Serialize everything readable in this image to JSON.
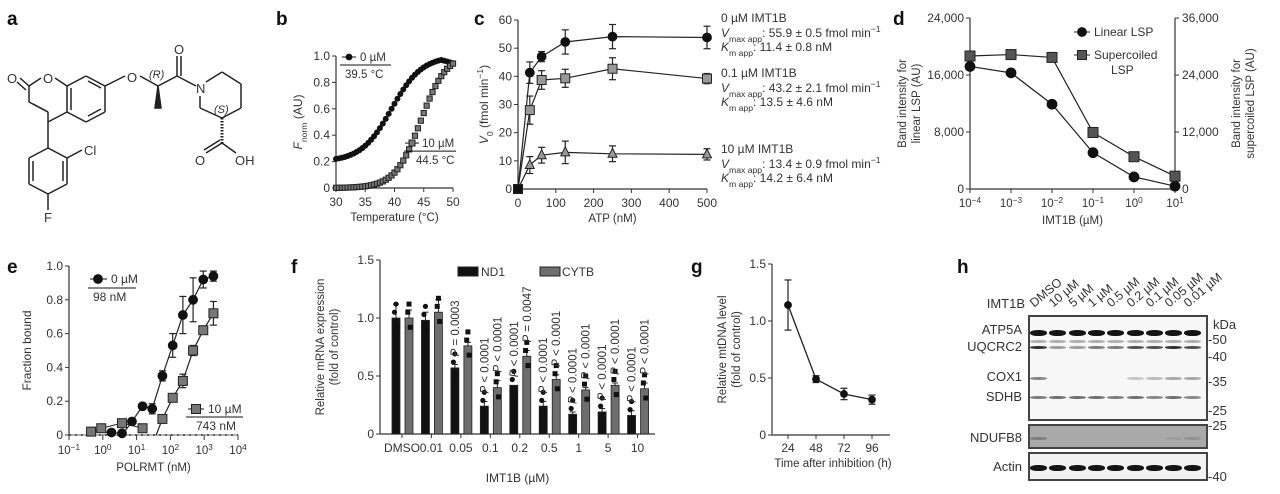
{
  "panel_labels": {
    "a": "a",
    "b": "b",
    "c": "c",
    "d": "d",
    "e": "e",
    "f": "f",
    "g": "g",
    "h": "h"
  },
  "panel_a": {
    "atoms": {
      "O_carbonyl_left": "O",
      "O_ring": "O",
      "O_ether": "O",
      "R_label": "(R)",
      "O_amide": "O",
      "N": "N",
      "S_label": "(S)",
      "O_acid": "O",
      "OH": "OH",
      "Cl": "Cl",
      "F": "F"
    }
  },
  "chart_data": [
    {
      "id": "b",
      "type": "scatter",
      "title": "",
      "xlabel": "Temperature (°C)",
      "ylabel_main": "F",
      "ylabel_sub": "norm",
      "ylabel_suffix": " (AU)",
      "xlim": [
        30,
        50
      ],
      "ylim": [
        0,
        1.0
      ],
      "xticks": [
        30,
        35,
        40,
        45,
        50
      ],
      "yticks": [
        0,
        0.2,
        0.4,
        0.6,
        0.8,
        1.0
      ],
      "ytick_labels": [
        "0",
        "0.2",
        "0.4",
        "0.6",
        "0.8",
        "1.0"
      ],
      "series": [
        {
          "name": "0 µM",
          "marker": "circle",
          "color": "#111111",
          "tm": 39.5,
          "tm_label": "39.5 °C",
          "baseline": 0.2,
          "top": 1.0,
          "slope": 2.6,
          "x_start": 30,
          "x_end": 50,
          "step": 0.5,
          "end_dip": 0.95
        },
        {
          "name": "10 µM",
          "marker": "square",
          "color": "#777777",
          "tm": 44.5,
          "tm_label": "44.5 °C",
          "baseline": 0.0,
          "top": 1.02,
          "slope": 2.2,
          "x_start": 30,
          "x_end": 50,
          "step": 0.5
        }
      ],
      "legend": "top-left"
    },
    {
      "id": "c",
      "type": "line",
      "xlabel": "ATP (nM)",
      "ylabel_main": "V",
      "ylabel_sub": "0",
      "ylabel_suffix": " (fmol min",
      "ylabel_sup": "−1",
      "ylabel_end": ")",
      "xlim": [
        0,
        500
      ],
      "ylim": [
        0,
        60
      ],
      "xticks": [
        0,
        100,
        200,
        300,
        400,
        500
      ],
      "yticks": [
        0,
        10,
        20,
        30,
        40,
        50,
        60
      ],
      "x": [
        0,
        31.25,
        62.5,
        125,
        250,
        500
      ],
      "series": [
        {
          "name": "0 µM IMT1B",
          "marker": "circle",
          "color": "#111111",
          "values": [
            0,
            41.3,
            47.0,
            52.2,
            54.1,
            53.8
          ],
          "err": [
            0,
            3.8,
            1.8,
            4.3,
            4.3,
            4.0
          ],
          "vmax": "55.9 ± 0.5 fmol min",
          "km": "11.4 ± 0.8 nM"
        },
        {
          "name": "0.1 µM IMT1B",
          "marker": "square",
          "color": "#999999",
          "values": [
            0,
            28.0,
            38.7,
            39.3,
            42.7,
            39.2
          ],
          "err": [
            0,
            5.0,
            3.3,
            3.2,
            3.9,
            1.8
          ],
          "vmax": "43.2 ± 2.1 fmol min",
          "km": "13.5 ± 4.6 nM"
        },
        {
          "name": "10 µM IMT1B",
          "marker": "triangle",
          "color": "#999999",
          "values": [
            0,
            8.5,
            12.0,
            13.0,
            12.5,
            12.3
          ],
          "err": [
            0,
            3.0,
            2.8,
            4.0,
            2.8,
            2.0
          ],
          "vmax": "13.4 ± 0.9 fmol min",
          "km": "14.2 ± 6.4 nM"
        }
      ],
      "annot_vmax_main": "V",
      "annot_vmax_sub": "max app",
      "annot_km_main": "K",
      "annot_km_sub": "m app",
      "annot_sup": "−1"
    },
    {
      "id": "d",
      "type": "line",
      "xlabel": "IMT1B (µM)",
      "ylabel_left": [
        "Band intensity for",
        "linear LSP (AU)"
      ],
      "ylabel_right": [
        "Band intensity for",
        "supercoiled LSP (AU)"
      ],
      "x_log": true,
      "xlim_exp": [
        -4,
        1
      ],
      "xtick_exps": [
        "−4",
        "−3",
        "−2",
        "−1",
        "0",
        "1"
      ],
      "ylim_left": [
        0,
        24000
      ],
      "ylim_right": [
        0,
        36000
      ],
      "yticks_left": [
        "0",
        "8,000",
        "16,000",
        "24,000"
      ],
      "yticks_right": [
        "0",
        "12,000",
        "24,000",
        "36,000"
      ],
      "x_exp": [
        -4,
        -3,
        -2,
        -1,
        0,
        1
      ],
      "series": [
        {
          "name": "Linear LSP",
          "marker": "circle",
          "color": "#111111",
          "axis": "left",
          "values": [
            17200,
            16300,
            11900,
            5100,
            1700,
            400
          ]
        },
        {
          "name": "Supercoiled LSP",
          "name_lines": [
            "Supercoiled",
            "LSP"
          ],
          "marker": "square",
          "color": "#555555",
          "axis": "right",
          "values": [
            28000,
            28300,
            27700,
            11900,
            6800,
            2700
          ]
        }
      ],
      "legend": "top-right"
    },
    {
      "id": "e",
      "type": "scatter",
      "xlabel": "POLRMT (nM)",
      "ylabel": "Fraction bound",
      "x_log": true,
      "xlim_exp": [
        -1,
        4
      ],
      "xtick_exps": [
        "−1",
        "0",
        "1",
        "2",
        "3",
        "4"
      ],
      "ylim": [
        0,
        1.0
      ],
      "yticks": [
        "0",
        "0.2",
        "0.4",
        "0.6",
        "0.8",
        "1.0"
      ],
      "series": [
        {
          "name": "0 µM",
          "kd_label": "98 nM",
          "marker": "circle",
          "color": "#111111",
          "x": [
            0.45,
            1.8,
            3.7,
            7.3,
            15,
            29,
            58,
            117,
            234,
            469,
            938,
            1875
          ],
          "values": [
            0.02,
            0.015,
            0.01,
            0.08,
            0.17,
            0.155,
            0.35,
            0.53,
            0.71,
            0.8,
            0.92,
            0.94
          ],
          "err": [
            0.02,
            0,
            0,
            0,
            0,
            0.03,
            0.03,
            0.07,
            0.11,
            0.13,
            0.05,
            0.03
          ],
          "fit_start": 4.0
        },
        {
          "name": "10 µM",
          "kd_label": "743 nM",
          "marker": "square",
          "color": "#777777",
          "x": [
            0.45,
            0.9,
            3.7,
            15,
            58,
            117,
            234,
            469,
            938,
            1875
          ],
          "values": [
            0.02,
            0.04,
            0.07,
            0.04,
            0.095,
            0.22,
            0.32,
            0.5,
            0.62,
            0.72
          ],
          "err": [
            0,
            0,
            0,
            0,
            0,
            0,
            0.04,
            0.03,
            0.02,
            0.07
          ],
          "fit_start": 40
        }
      ],
      "legend_top": "top-left",
      "legend_bottom": "bottom-right"
    },
    {
      "id": "f",
      "type": "bar",
      "xlabel": "IMT1B (µM)",
      "ylabel": [
        "Relative mRNA expression",
        "(fold of control)"
      ],
      "categories": [
        "DMSO",
        "0.01",
        "0.05",
        "0.1",
        "0.2",
        "0.5",
        "1",
        "5",
        "10"
      ],
      "ylim": [
        0,
        1.5
      ],
      "yticks": [
        "0",
        "0.5",
        "1.0",
        "1.5"
      ],
      "series": [
        {
          "name": "ND1",
          "color": "#111111",
          "values": [
            1.0,
            0.98,
            0.57,
            0.24,
            0.42,
            0.24,
            0.17,
            0.19,
            0.16
          ],
          "err": [
            0.12,
            0.07,
            0.03,
            0.04,
            0.0,
            0.04,
            0.02,
            0.03,
            0.04
          ]
        },
        {
          "name": "CYTB",
          "color": "#6e6e6e",
          "values": [
            1.0,
            1.05,
            0.76,
            0.4,
            0.67,
            0.47,
            0.38,
            0.42,
            0.39
          ],
          "err": [
            0.07,
            0.11,
            0.03,
            0.06,
            0.05,
            0.04,
            0.02,
            0.02,
            0.05
          ]
        }
      ],
      "pvalues_nd1": [
        "",
        "",
        "P = 0.0003",
        "P < 0.0001",
        "P < 0.0001",
        "P < 0.0001",
        "P < 0.0001",
        "P < 0.0001",
        "P < 0.0001"
      ],
      "pvalues_cytb": [
        "",
        "",
        "",
        "P < 0.0001",
        "P = 0.0047",
        "P < 0.0001",
        "P < 0.0001",
        "P < 0.0001",
        "P < 0.0001"
      ],
      "legend": "top-right"
    },
    {
      "id": "g",
      "type": "line",
      "xlabel": "Time after inhibition (h)",
      "ylabel": [
        "Relative mtDNA  level",
        "(fold of control)"
      ],
      "x": [
        24,
        48,
        72,
        96
      ],
      "xticks": [
        "24",
        "48",
        "72",
        "96"
      ],
      "ylim": [
        0,
        1.5
      ],
      "yticks": [
        "0",
        "0.5",
        "1.0",
        "1.5"
      ],
      "series": [
        {
          "name": "mtDNA",
          "marker": "circle",
          "color": "#111111",
          "values": [
            1.14,
            0.49,
            0.36,
            0.31
          ],
          "err": [
            0.22,
            0.03,
            0.05,
            0.04
          ]
        }
      ]
    }
  ],
  "panel_h": {
    "row_header": "IMT1B",
    "columns": [
      "DMSO",
      "10 µM",
      "5 µM",
      "1 µM",
      "0.5 µM",
      "0.2 µM",
      "0.1 µM",
      "0.05 µM",
      "0.01 µM"
    ],
    "proteins": [
      "ATP5A",
      "UQCRC2",
      "COX1",
      "SDHB",
      "NDUFB8",
      "Actin"
    ],
    "kda_header": "kDa",
    "kda_markers_top": [
      "50",
      "40",
      "35",
      "25"
    ],
    "kda_markers_mid": [
      "25"
    ],
    "kda_markers_bottom": [
      "40"
    ],
    "band_intensity": {
      "ATP5A": [
        1,
        1,
        1,
        1,
        1,
        1,
        1,
        1,
        1
      ],
      "UQCRC2": [
        0.85,
        0.35,
        0.35,
        0.5,
        0.5,
        0.7,
        0.7,
        0.85,
        0.7
      ],
      "COX1": [
        0.45,
        0,
        0,
        0,
        0,
        0.15,
        0.2,
        0.3,
        0.3
      ],
      "SDHB": [
        0.5,
        0.55,
        0.55,
        0.55,
        0.5,
        0.55,
        0.45,
        0.55,
        0.45
      ],
      "NDUFB8": [
        0.5,
        0,
        0,
        0,
        0,
        0,
        0,
        0.35,
        0.4
      ],
      "Actin": [
        1,
        1,
        1,
        1,
        1,
        1,
        1,
        1,
        1
      ]
    }
  }
}
